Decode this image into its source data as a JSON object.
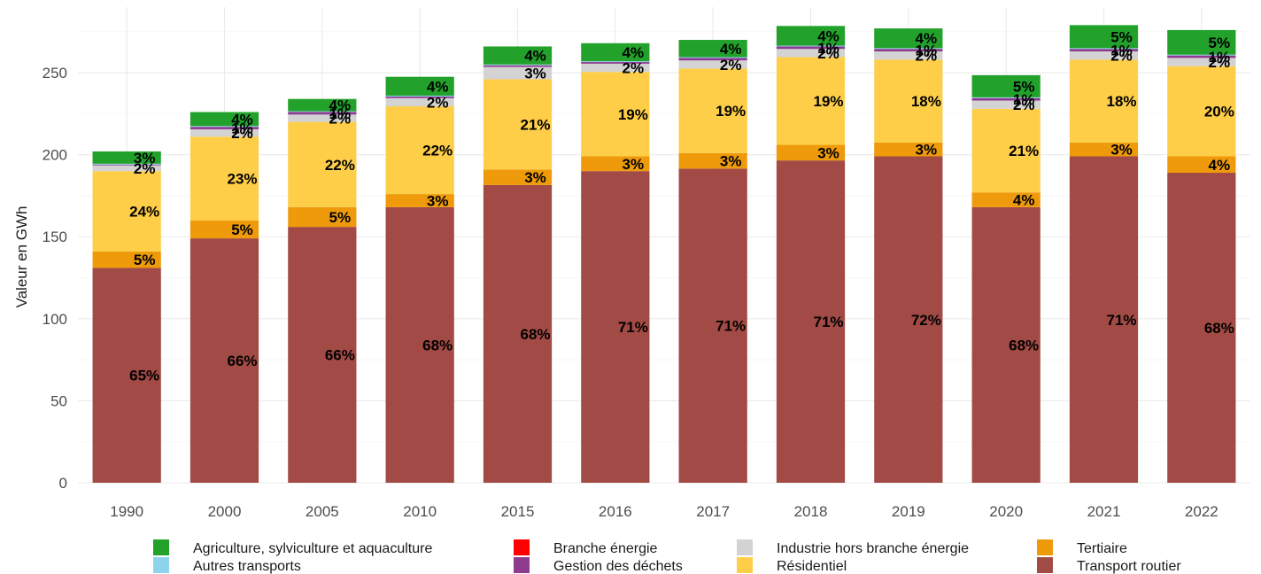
{
  "chart_data": {
    "type": "bar",
    "stacked": true,
    "title": "",
    "xlabel": "",
    "ylabel": "Valeur en GWh",
    "ylim": [
      0,
      290
    ],
    "yticks": [
      0,
      50,
      100,
      150,
      200,
      250
    ],
    "grid": true,
    "legend_position": "bottom",
    "categories": [
      "1990",
      "2000",
      "2005",
      "2010",
      "2015",
      "2016",
      "2017",
      "2018",
      "2019",
      "2020",
      "2021",
      "2022"
    ],
    "series": [
      {
        "key": "transport_routier",
        "name": "Transport routier",
        "color": "#A24A45",
        "values": [
          131,
          149,
          156,
          168,
          181.5,
          190,
          191.5,
          196.5,
          199,
          168,
          199,
          189
        ],
        "labels": [
          "65%",
          "66%",
          "66%",
          "68%",
          "68%",
          "71%",
          "71%",
          "71%",
          "72%",
          "68%",
          "71%",
          "68%"
        ]
      },
      {
        "key": "tertiaire",
        "name": "Tertiaire",
        "color": "#EE9A0B",
        "values": [
          10,
          11,
          12,
          8,
          9.5,
          9,
          9.5,
          9.5,
          8.5,
          9,
          8.5,
          10
        ],
        "labels": [
          "5%",
          "5%",
          "5%",
          "3%",
          "3%",
          "3%",
          "3%",
          "3%",
          "3%",
          "4%",
          "3%",
          "4%"
        ]
      },
      {
        "key": "residentiel",
        "name": "Résidentiel",
        "color": "#FECE48",
        "values": [
          49,
          51,
          52,
          53.5,
          55,
          51.5,
          51.5,
          53.5,
          50.5,
          51,
          50.5,
          55
        ],
        "labels": [
          "24%",
          "23%",
          "22%",
          "22%",
          "21%",
          "19%",
          "19%",
          "19%",
          "18%",
          "21%",
          "18%",
          "20%"
        ]
      },
      {
        "key": "industrie",
        "name": "Industrie hors branche énergie",
        "color": "#D3D3D3",
        "values": [
          3.5,
          4.5,
          4.5,
          5,
          7.5,
          5,
          5,
          5,
          5,
          5,
          5,
          5
        ],
        "labels": [
          "2%",
          "2%",
          "2%",
          "2%",
          "3%",
          "2%",
          "2%",
          "2%",
          "2%",
          "2%",
          "2%",
          "2%"
        ]
      },
      {
        "key": "gestion_dechets",
        "name": "Gestion des déchets",
        "color": "#8E3B8F",
        "values": [
          0.5,
          1.5,
          1.5,
          1,
          1,
          1,
          1.5,
          1.5,
          1.5,
          1.5,
          1.5,
          1.5
        ],
        "labels": [
          "",
          "1%",
          "1%",
          "",
          "",
          "",
          "",
          "1%",
          "1%",
          "1%",
          "1%",
          "1%"
        ]
      },
      {
        "key": "branche_energie",
        "name": "Branche énergie",
        "color": "#FF0000",
        "values": [
          0,
          0,
          0,
          0,
          0,
          0,
          0,
          0,
          0,
          0,
          0,
          0
        ],
        "labels": [
          "",
          "",
          "",
          "",
          "",
          "",
          "",
          "",
          "",
          "",
          "",
          ""
        ]
      },
      {
        "key": "autres_transports",
        "name": "Autres transports",
        "color": "#8DD3EE",
        "values": [
          0.5,
          0.5,
          0.5,
          0.5,
          0.5,
          0.5,
          0.5,
          0.5,
          0.5,
          0.5,
          0.5,
          0.5
        ],
        "labels": [
          "",
          "",
          "",
          "",
          "",
          "",
          "",
          "",
          "",
          "",
          "",
          ""
        ]
      },
      {
        "key": "agriculture",
        "name": "Agriculture, sylviculture et aquaculture",
        "color": "#22A22B",
        "values": [
          7.5,
          8.5,
          7.5,
          11.5,
          11,
          11,
          10.5,
          12,
          12,
          13.5,
          14,
          15
        ],
        "labels": [
          "3%",
          "4%",
          "4%",
          "4%",
          "4%",
          "4%",
          "4%",
          "4%",
          "4%",
          "5%",
          "5%",
          "5%"
        ]
      }
    ],
    "legend": [
      [
        "Agriculture, sylviculture et aquaculture",
        "Branche énergie",
        "Industrie hors branche énergie",
        "Tertiaire"
      ],
      [
        "Autres transports",
        "Gestion des déchets",
        "Résidentiel",
        "Transport routier"
      ]
    ]
  }
}
